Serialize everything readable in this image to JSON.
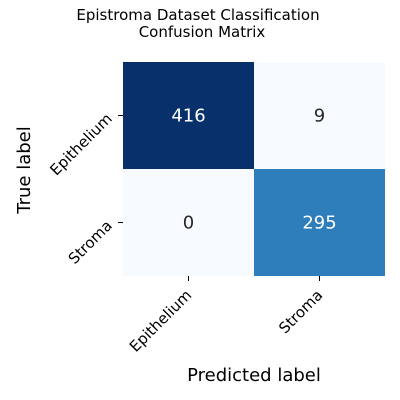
{
  "chart_data": {
    "type": "heatmap",
    "title_lines": [
      "Epistroma Dataset Classification",
      "Confusion Matrix"
    ],
    "xlabel": "Predicted label",
    "ylabel": "True label",
    "x_categories": [
      "Epithelium",
      "Stroma"
    ],
    "y_categories": [
      "Epithelium",
      "Stroma"
    ],
    "values": [
      [
        416,
        9
      ],
      [
        0,
        295
      ]
    ],
    "colormap": "Blues",
    "colorbar": false,
    "grid": false,
    "cell_colors": [
      [
        "#08306b",
        "#f7fbff"
      ],
      [
        "#f7fbff",
        "#2e7ebc"
      ]
    ],
    "text_colors": [
      [
        "#ffffff",
        "#262626"
      ],
      [
        "#262626",
        "#ffffff"
      ]
    ]
  }
}
